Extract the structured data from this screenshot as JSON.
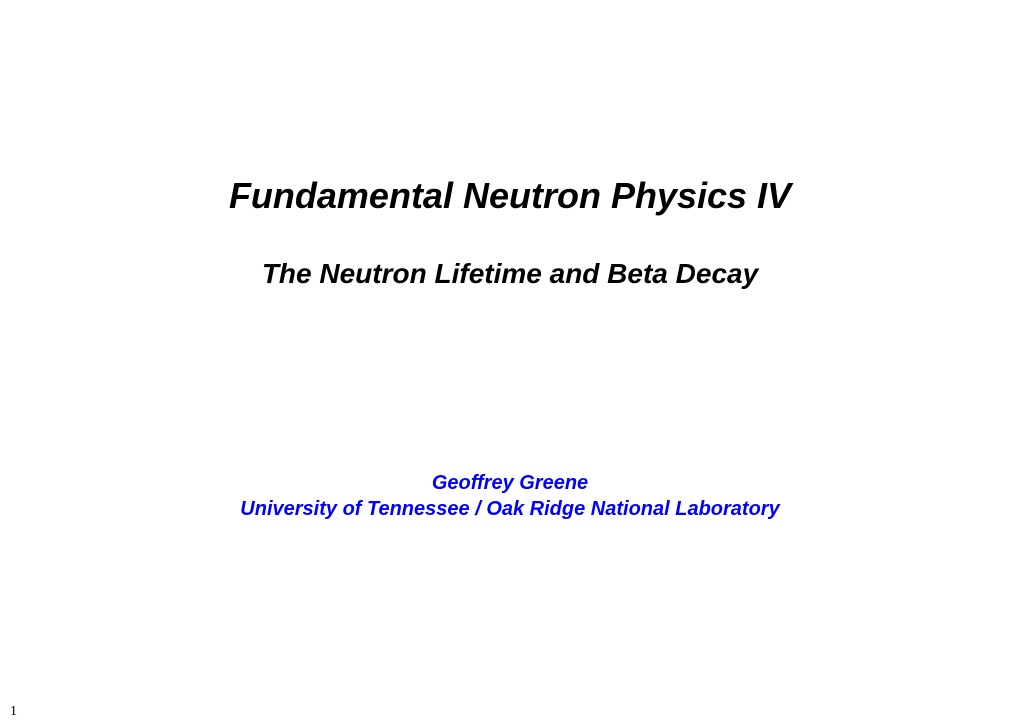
{
  "slide": {
    "title": "Fundamental Neutron Physics IV",
    "subtitle": "The Neutron Lifetime and Beta Decay",
    "author": "Geoffrey Greene",
    "affiliation": "University of Tennessee / Oak Ridge National Laboratory",
    "page_number": "1"
  },
  "styling": {
    "background_color": "#ffffff",
    "title_color": "#000000",
    "title_fontsize": 36,
    "title_fontweight": "bold",
    "title_fontstyle": "italic",
    "subtitle_color": "#000000",
    "subtitle_fontsize": 28,
    "subtitle_fontweight": "bold",
    "subtitle_fontstyle": "italic",
    "author_color": "#0000ff",
    "author_fontsize": 20,
    "author_fontweight": "bold",
    "author_fontstyle": "italic",
    "affiliation_color": "#0000ff",
    "affiliation_fontsize": 20,
    "page_number_color": "#000000",
    "page_number_fontsize": 14,
    "font_family": "Comic Sans MS"
  }
}
